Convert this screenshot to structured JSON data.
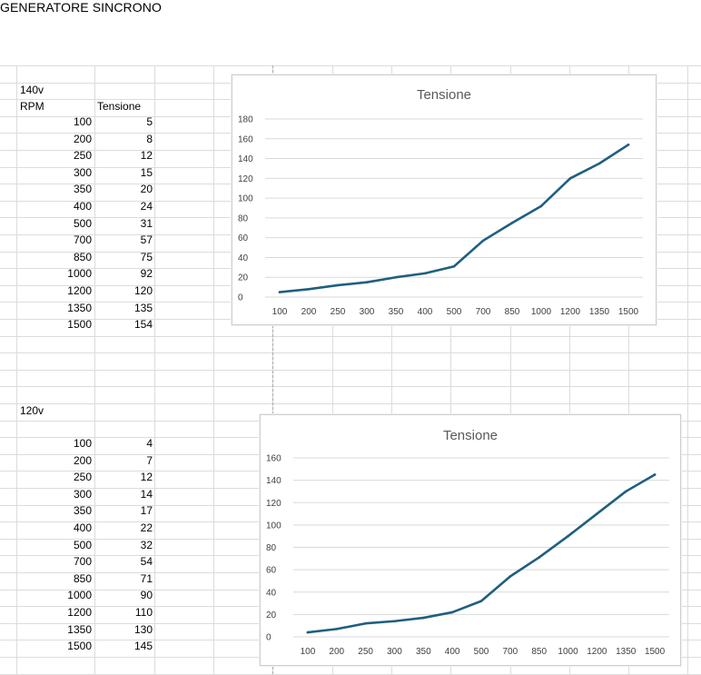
{
  "sheet": {
    "title": "GENERATORE SINCRONO",
    "block1": {
      "label": "140v",
      "col_a_header": "RPM",
      "col_b_header": "Tensione",
      "rpm": [
        "100",
        "200",
        "250",
        "300",
        "350",
        "400",
        "500",
        "700",
        "850",
        "1000",
        "1200",
        "1350",
        "1500"
      ],
      "tensione": [
        "5",
        "8",
        "12",
        "15",
        "20",
        "24",
        "31",
        "57",
        "75",
        "92",
        "120",
        "135",
        "154"
      ]
    },
    "block2": {
      "label": "120v",
      "rpm": [
        "100",
        "200",
        "250",
        "300",
        "350",
        "400",
        "500",
        "700",
        "850",
        "1000",
        "1200",
        "1350",
        "1500"
      ],
      "tensione": [
        "4",
        "7",
        "12",
        "14",
        "17",
        "22",
        "32",
        "54",
        "71",
        "90",
        "110",
        "130",
        "145"
      ]
    }
  },
  "colors": {
    "line": "#1f5f7f",
    "gridline": "#d9d9d9",
    "cell_border": "#dcdcdc"
  },
  "chart_data": [
    {
      "type": "line",
      "title": "Tensione",
      "categories": [
        "100",
        "200",
        "250",
        "300",
        "350",
        "400",
        "500",
        "700",
        "850",
        "1000",
        "1200",
        "1350",
        "1500"
      ],
      "series": [
        {
          "values": [
            5,
            8,
            12,
            15,
            20,
            24,
            31,
            57,
            75,
            92,
            120,
            135,
            154
          ]
        }
      ],
      "ylim": [
        0,
        180
      ],
      "yticks": [
        "0",
        "20",
        "40",
        "60",
        "80",
        "100",
        "120",
        "140",
        "160",
        "180"
      ],
      "grid": true,
      "legend": "none"
    },
    {
      "type": "line",
      "title": "Tensione",
      "categories": [
        "100",
        "200",
        "250",
        "300",
        "350",
        "400",
        "500",
        "700",
        "850",
        "1000",
        "1200",
        "1350",
        "1500"
      ],
      "series": [
        {
          "values": [
            4,
            7,
            12,
            14,
            17,
            22,
            32,
            54,
            71,
            90,
            110,
            130,
            145
          ]
        }
      ],
      "ylim": [
        0,
        160
      ],
      "yticks": [
        "0",
        "20",
        "40",
        "60",
        "80",
        "100",
        "120",
        "140",
        "160"
      ],
      "grid": true,
      "legend": "none"
    }
  ]
}
